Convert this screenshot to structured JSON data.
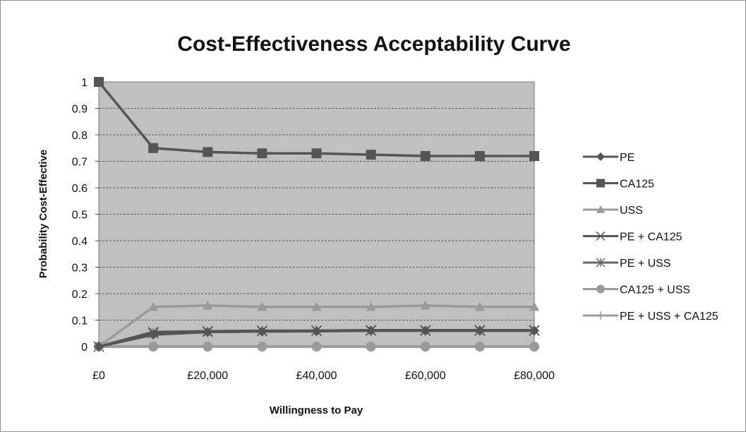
{
  "chart_data": {
    "type": "line",
    "title": "Cost-Effectiveness Acceptability Curve",
    "xlabel": "Willingness to Pay",
    "ylabel": "Probability Cost-Effective",
    "x": [
      0,
      10000,
      20000,
      30000,
      40000,
      50000,
      60000,
      70000,
      80000
    ],
    "xlim": [
      0,
      80000
    ],
    "ylim": [
      0,
      1
    ],
    "x_tick_labels": [
      "£0",
      "£20,000",
      "£40,000",
      "£60,000",
      "£80,000"
    ],
    "y_tick_labels": [
      "0",
      "0.1",
      "0.2",
      "0.3",
      "0.4",
      "0.5",
      "0.6",
      "0.7",
      "0.8",
      "0.9",
      "1"
    ],
    "plot_background": "#c0c0c0",
    "gridlines": true,
    "legend_position": "right",
    "series": [
      {
        "name": "PE",
        "marker": "diamond",
        "color": "#555555",
        "values": [
          0,
          0.045,
          0.055,
          0.057,
          0.058,
          0.06,
          0.06,
          0.06,
          0.06
        ]
      },
      {
        "name": "CA125",
        "marker": "square",
        "color": "#555555",
        "values": [
          1,
          0.75,
          0.735,
          0.73,
          0.73,
          0.725,
          0.72,
          0.72,
          0.72
        ]
      },
      {
        "name": "USS",
        "marker": "triangle",
        "color": "#9a9a9a",
        "values": [
          0,
          0.15,
          0.155,
          0.15,
          0.15,
          0.15,
          0.155,
          0.15,
          0.15
        ]
      },
      {
        "name": "PE + CA125",
        "marker": "x",
        "color": "#555555",
        "values": [
          0,
          0.055,
          0.058,
          0.06,
          0.06,
          0.062,
          0.062,
          0.062,
          0.062
        ]
      },
      {
        "name": "PE + USS",
        "marker": "star",
        "color": "#666666",
        "values": [
          0,
          0.05,
          0.055,
          0.058,
          0.06,
          0.06,
          0.06,
          0.06,
          0.06
        ]
      },
      {
        "name": "CA125 + USS",
        "marker": "circle",
        "color": "#9a9a9a",
        "values": [
          0,
          0,
          0,
          0,
          0,
          0,
          0,
          0,
          0
        ]
      },
      {
        "name": "PE + USS + CA125",
        "marker": "plus",
        "color": "#9a9a9a",
        "values": [
          0,
          0,
          0,
          0,
          0,
          0,
          0,
          0,
          0
        ]
      }
    ]
  }
}
